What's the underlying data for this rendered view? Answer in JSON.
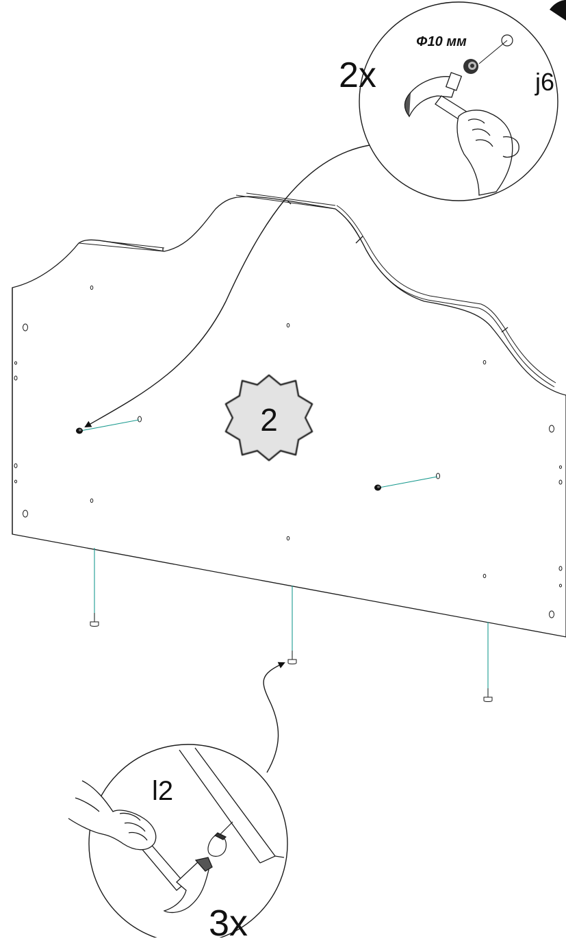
{
  "step": {
    "number": "2"
  },
  "callout_top": {
    "quantity": "2x",
    "diameter": "Φ10 мм",
    "part_code": "j6"
  },
  "callout_bottom": {
    "quantity": "3x",
    "part_code": "l2"
  },
  "colors": {
    "line": "#1a1a1a",
    "guide_line": "#1a9a8f",
    "badge_fill": "#e3e3e3",
    "badge_stroke": "#1a1a1a"
  }
}
